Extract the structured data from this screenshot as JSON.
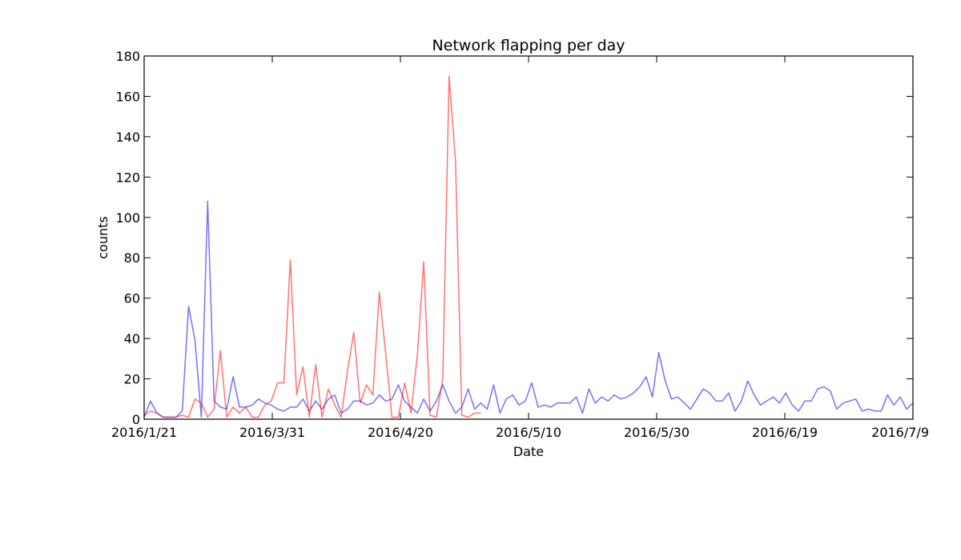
{
  "chart_data": {
    "type": "line",
    "title": "Network flapping per day",
    "xlabel": "Date",
    "ylabel": "counts",
    "ylim": [
      0,
      180
    ],
    "y_ticks": [
      0,
      20,
      40,
      60,
      80,
      100,
      120,
      140,
      160,
      180
    ],
    "x_ticks": [
      "2016/1/21",
      "2016/3/31",
      "2016/4/20",
      "2016/5/10",
      "2016/5/30",
      "2016/6/19",
      "2016/7/9"
    ],
    "grid": false,
    "series": [
      {
        "color": "#0000ff",
        "values": [
          1,
          9,
          3,
          1,
          1,
          1,
          4,
          56,
          39,
          1,
          108,
          9,
          6,
          5,
          21,
          6,
          6,
          7,
          10,
          8,
          7,
          5,
          4,
          6,
          6,
          10,
          4,
          9,
          5,
          10,
          12,
          3,
          5,
          9,
          9,
          7,
          8,
          12,
          9,
          10,
          17,
          9,
          6,
          3,
          10,
          4,
          9,
          17,
          9,
          3,
          6,
          15,
          5,
          8,
          5,
          17,
          3,
          10,
          12,
          7,
          9,
          18,
          6,
          7,
          6,
          8,
          8,
          8,
          11,
          3,
          15,
          8,
          11,
          9,
          12,
          10,
          11,
          13,
          16,
          21,
          11,
          33,
          19,
          10,
          11,
          8,
          5,
          10,
          15,
          13,
          9,
          9,
          13,
          4,
          9,
          19,
          12,
          7,
          9,
          11,
          8,
          13,
          7,
          4,
          9,
          9,
          15,
          16,
          14,
          5,
          8,
          9,
          10,
          4,
          5,
          4,
          4,
          12,
          7,
          11,
          5,
          8
        ]
      },
      {
        "color": "#ff0000",
        "values": [
          2,
          4,
          3,
          1,
          1,
          1,
          2,
          1,
          10,
          8,
          1,
          5,
          34,
          1,
          6,
          3,
          6,
          1,
          1,
          7,
          9,
          18,
          18,
          79,
          12,
          26,
          1,
          27,
          1,
          15,
          7,
          1,
          24,
          43,
          8,
          17,
          12,
          63,
          33,
          1,
          1,
          18,
          3,
          32,
          78,
          2,
          1,
          20,
          170,
          128,
          2,
          1,
          3,
          3
        ]
      }
    ]
  }
}
